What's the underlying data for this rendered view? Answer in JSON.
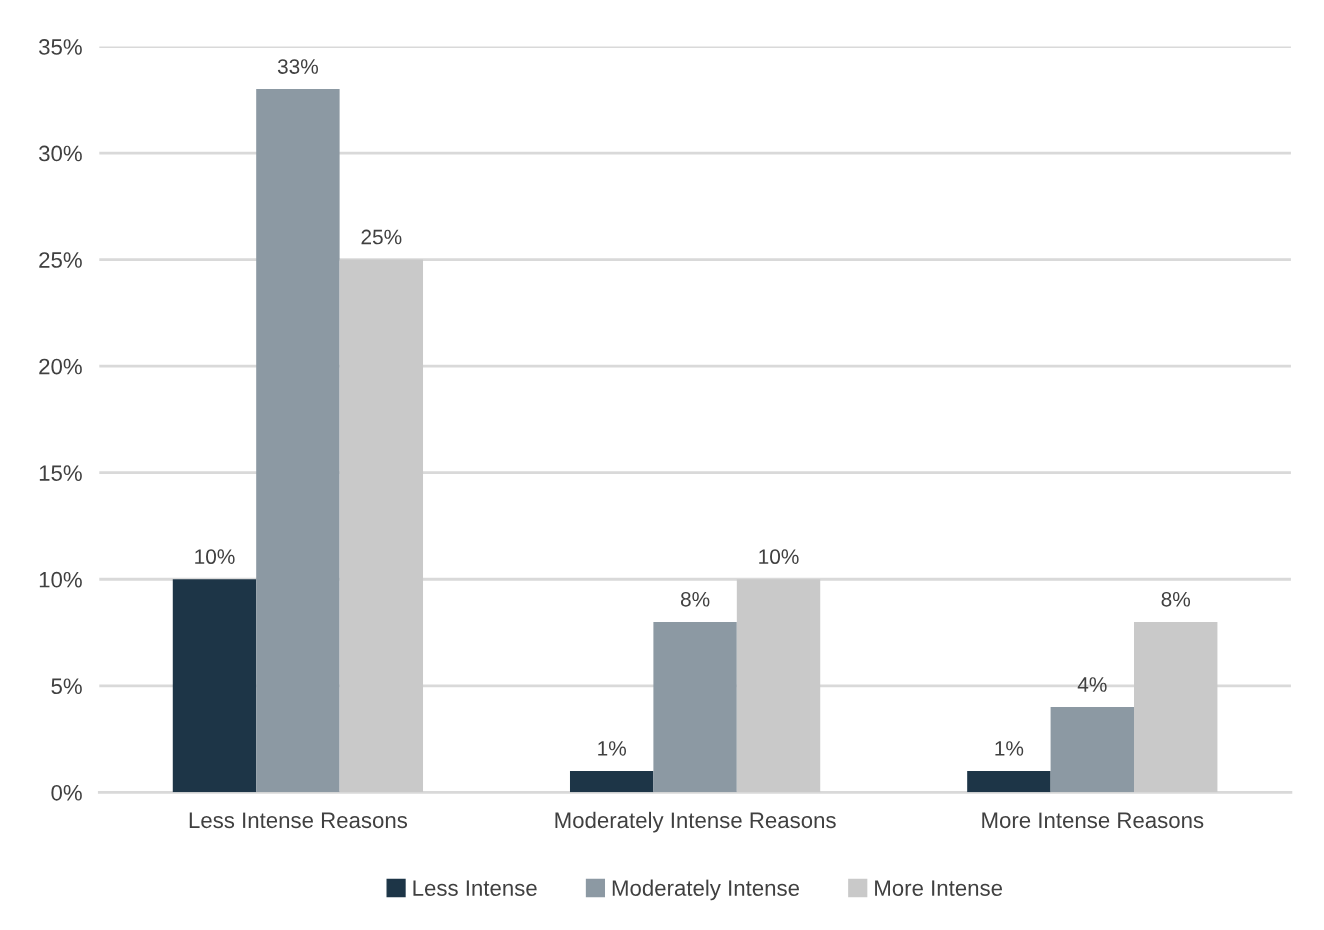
{
  "chart_data": {
    "type": "bar",
    "categories": [
      "Less Intense Reasons",
      "Moderately Intense Reasons",
      "More Intense Reasons"
    ],
    "series": [
      {
        "name": "Less Intense",
        "color": "#1d3547",
        "values": [
          10,
          1,
          1
        ],
        "value_labels": [
          "10%",
          "1%",
          "1%"
        ]
      },
      {
        "name": "Moderately Intense",
        "color": "#8c99a3",
        "values": [
          33,
          8,
          4
        ],
        "value_labels": [
          "33%",
          "8%",
          "4%"
        ]
      },
      {
        "name": "More Intense",
        "color": "#c9c9c9",
        "values": [
          25,
          10,
          8
        ],
        "value_labels": [
          "25%",
          "10%",
          "8%"
        ]
      }
    ],
    "ylim": [
      0,
      35
    ],
    "yticks": [
      {
        "value": 0,
        "label": "0%"
      },
      {
        "value": 5,
        "label": "5%"
      },
      {
        "value": 10,
        "label": "10%"
      },
      {
        "value": 15,
        "label": "15%"
      },
      {
        "value": 20,
        "label": "20%"
      },
      {
        "value": 25,
        "label": "25%"
      },
      {
        "value": 30,
        "label": "30%"
      },
      {
        "value": 35,
        "label": "35%"
      }
    ],
    "grid": "y",
    "legend": "bottom"
  }
}
